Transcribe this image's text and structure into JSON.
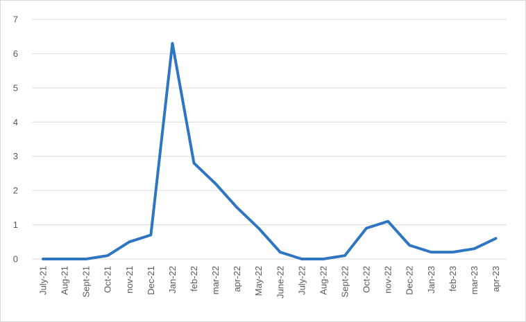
{
  "chart_data": {
    "type": "line",
    "categories": [
      "July-21",
      "Aug-21",
      "Sept-21",
      "Oct-21",
      "nov-21",
      "Dec-21",
      "Jan-22",
      "feb-22",
      "mar-22",
      "apr-22",
      "May-22",
      "June-22",
      "July-22",
      "Aug-22",
      "Sept-22",
      "Oct-22",
      "nov-22",
      "Dec-22",
      "Jan-23",
      "feb-23",
      "mar-23",
      "apr-23"
    ],
    "values": [
      0,
      0,
      0,
      0.1,
      0.5,
      0.7,
      6.3,
      2.8,
      2.2,
      1.5,
      0.9,
      0.2,
      0,
      0,
      0.1,
      0.9,
      1.1,
      0.4,
      0.2,
      0.2,
      0.3,
      0.6
    ],
    "color": "#2e75c2",
    "ylim": [
      0,
      7
    ],
    "yticks": [
      0,
      1,
      2,
      3,
      4,
      5,
      6,
      7
    ],
    "grid": true
  }
}
